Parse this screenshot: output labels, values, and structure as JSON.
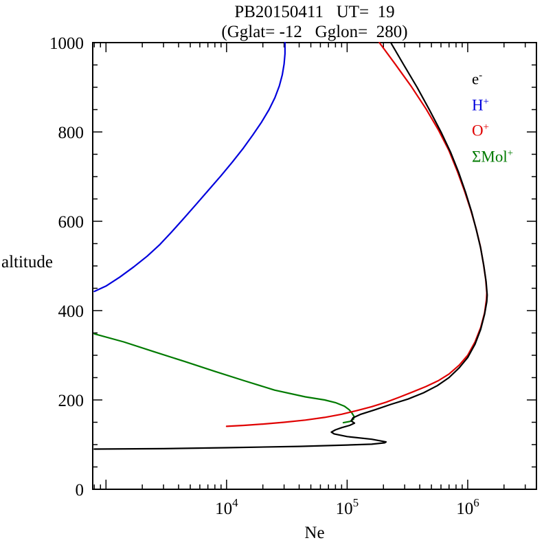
{
  "chart_data": {
    "type": "line",
    "title": "PB20150411   UT=  19",
    "subtitle": "(Gglat= -12   Gglon=  280)",
    "xlabel": "Ne",
    "ylabel": "altitude",
    "x_scale": "log10",
    "xlim_log10": [
      2.89,
      6.57
    ],
    "ylim": [
      0,
      1000
    ],
    "y_major_step": 200,
    "y_minor_step": 50,
    "y_tick_labels": [
      "0",
      "200",
      "400",
      "600",
      "800",
      "1000"
    ],
    "x_major_tick_exponents": [
      3,
      4,
      5,
      6
    ],
    "x_labeled_tick_exponents": [
      4,
      5,
      6
    ],
    "grid": false,
    "legend_position": "top-right-inside",
    "series": [
      {
        "name": "e-",
        "label_base": "e",
        "label_sup": "-",
        "color": "#000000",
        "points": [
          [
            800,
            90
          ],
          [
            3000,
            91
          ],
          [
            10000,
            93
          ],
          [
            40000,
            96
          ],
          [
            100000,
            99
          ],
          [
            160000,
            101
          ],
          [
            205000,
            104
          ],
          [
            210000,
            106
          ],
          [
            160000,
            112
          ],
          [
            100000,
            118
          ],
          [
            78000,
            124
          ],
          [
            74000,
            128
          ],
          [
            80000,
            133
          ],
          [
            90000,
            138
          ],
          [
            105000,
            143
          ],
          [
            115000,
            148
          ],
          [
            108000,
            153
          ],
          [
            112000,
            160
          ],
          [
            130000,
            168
          ],
          [
            170000,
            178
          ],
          [
            230000,
            190
          ],
          [
            320000,
            202
          ],
          [
            430000,
            216
          ],
          [
            560000,
            232
          ],
          [
            700000,
            250
          ],
          [
            850000,
            272
          ],
          [
            1000000,
            295
          ],
          [
            1150000,
            325
          ],
          [
            1280000,
            358
          ],
          [
            1380000,
            392
          ],
          [
            1440000,
            420
          ],
          [
            1450000,
            435
          ],
          [
            1420000,
            465
          ],
          [
            1360000,
            500
          ],
          [
            1280000,
            540
          ],
          [
            1180000,
            580
          ],
          [
            1080000,
            620
          ],
          [
            960000,
            665
          ],
          [
            840000,
            710
          ],
          [
            720000,
            755
          ],
          [
            600000,
            800
          ],
          [
            480000,
            850
          ],
          [
            380000,
            900
          ],
          [
            295000,
            950
          ],
          [
            230000,
            1000
          ]
        ]
      },
      {
        "name": "H+",
        "label_base": "H",
        "label_sup": "+",
        "color": "#0000dd",
        "points": [
          [
            800,
            443
          ],
          [
            1000,
            455
          ],
          [
            1300,
            475
          ],
          [
            1700,
            498
          ],
          [
            2200,
            522
          ],
          [
            2800,
            548
          ],
          [
            3500,
            576
          ],
          [
            4400,
            606
          ],
          [
            5600,
            638
          ],
          [
            7100,
            670
          ],
          [
            9000,
            702
          ],
          [
            11200,
            733
          ],
          [
            13800,
            764
          ],
          [
            16500,
            793
          ],
          [
            19500,
            822
          ],
          [
            22500,
            850
          ],
          [
            25200,
            877
          ],
          [
            27400,
            903
          ],
          [
            29000,
            928
          ],
          [
            30000,
            952
          ],
          [
            30500,
            975
          ],
          [
            30500,
            1000
          ]
        ]
      },
      {
        "name": "O+",
        "label_base": "O",
        "label_sup": "+",
        "color": "#e00000",
        "points": [
          [
            10000,
            141
          ],
          [
            14000,
            143
          ],
          [
            20000,
            146
          ],
          [
            30000,
            150
          ],
          [
            45000,
            155
          ],
          [
            65000,
            161
          ],
          [
            90000,
            168
          ],
          [
            120000,
            176
          ],
          [
            160000,
            185
          ],
          [
            210000,
            195
          ],
          [
            270000,
            206
          ],
          [
            350000,
            218
          ],
          [
            450000,
            230
          ],
          [
            570000,
            243
          ],
          [
            700000,
            258
          ],
          [
            850000,
            278
          ],
          [
            1000000,
            300
          ],
          [
            1150000,
            330
          ],
          [
            1280000,
            362
          ],
          [
            1380000,
            395
          ],
          [
            1430000,
            425
          ],
          [
            1440000,
            440
          ],
          [
            1410000,
            470
          ],
          [
            1350000,
            505
          ],
          [
            1270000,
            545
          ],
          [
            1170000,
            585
          ],
          [
            1060000,
            625
          ],
          [
            940000,
            668
          ],
          [
            820000,
            712
          ],
          [
            700000,
            758
          ],
          [
            570000,
            805
          ],
          [
            450000,
            852
          ],
          [
            340000,
            902
          ],
          [
            250000,
            952
          ],
          [
            185000,
            1000
          ]
        ]
      },
      {
        "name": "Mol+",
        "label_base": "ΣMol",
        "label_sup": "+",
        "color": "#007a00",
        "points": [
          [
            800,
            348
          ],
          [
            1400,
            330
          ],
          [
            2500,
            308
          ],
          [
            4500,
            286
          ],
          [
            8000,
            264
          ],
          [
            14000,
            243
          ],
          [
            25000,
            222
          ],
          [
            45000,
            207
          ],
          [
            65000,
            200
          ],
          [
            80000,
            194
          ],
          [
            95000,
            186
          ],
          [
            104000,
            178
          ],
          [
            110000,
            170
          ],
          [
            114000,
            163
          ],
          [
            113000,
            157
          ],
          [
            106000,
            152
          ],
          [
            93000,
            149
          ]
        ]
      }
    ]
  }
}
